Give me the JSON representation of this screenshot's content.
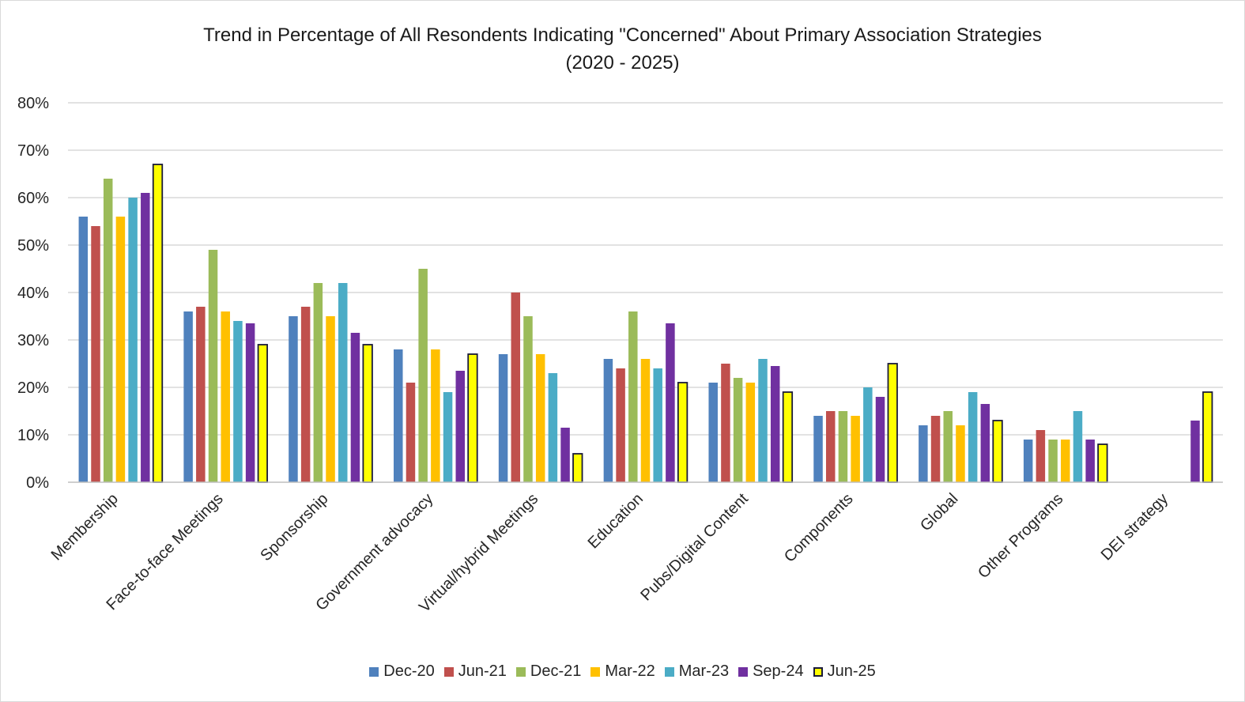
{
  "chart_data": {
    "type": "bar",
    "title": "Trend in Percentage of All Resondents Indicating \"Concerned\" About Primary Association Strategies",
    "subtitle": "(2020 - 2025)",
    "xlabel": "",
    "ylabel": "",
    "ylim": [
      0,
      80
    ],
    "ytick_format": "percent",
    "yticks": [
      0,
      10,
      20,
      30,
      40,
      50,
      60,
      70,
      80
    ],
    "grid": true,
    "legend_position": "bottom",
    "categories": [
      "Membership",
      "Face-to-face Meetings",
      "Sponsorship",
      "Government advocacy",
      "Virtual/hybrid Meetings",
      "Education",
      "Pubs/Digital Content",
      "Components",
      "Global",
      "Other Programs",
      "DEI strategy"
    ],
    "series": [
      {
        "name": "Dec-20",
        "color": "#4F81BD",
        "values": [
          56,
          36,
          35,
          28,
          27,
          26,
          21,
          14,
          12,
          9,
          null
        ]
      },
      {
        "name": "Jun-21",
        "color": "#C0504D",
        "values": [
          54,
          37,
          37,
          21,
          40,
          24,
          25,
          15,
          14,
          11,
          null
        ]
      },
      {
        "name": "Dec-21",
        "color": "#9BBB59",
        "values": [
          64,
          49,
          42,
          45,
          35,
          36,
          22,
          15,
          15,
          9,
          null
        ]
      },
      {
        "name": "Mar-22",
        "color": "#FFC000",
        "values": [
          56,
          36,
          35,
          28,
          27,
          26,
          21,
          14,
          12,
          9,
          null
        ]
      },
      {
        "name": "Mar-23",
        "color": "#4BACC6",
        "values": [
          60,
          34,
          42,
          19,
          23,
          24,
          26,
          20,
          19,
          15,
          null
        ]
      },
      {
        "name": "Sep-24",
        "color": "#7030A0",
        "values": [
          61,
          33.5,
          31.5,
          23.5,
          11.5,
          33.5,
          24.5,
          18,
          16.5,
          9,
          13
        ]
      },
      {
        "name": "Jun-25",
        "color": "#FFFF00",
        "outline": "#1a1a3a",
        "values": [
          67,
          29,
          29,
          27,
          6,
          21,
          19,
          25,
          13,
          8,
          19
        ]
      }
    ]
  }
}
